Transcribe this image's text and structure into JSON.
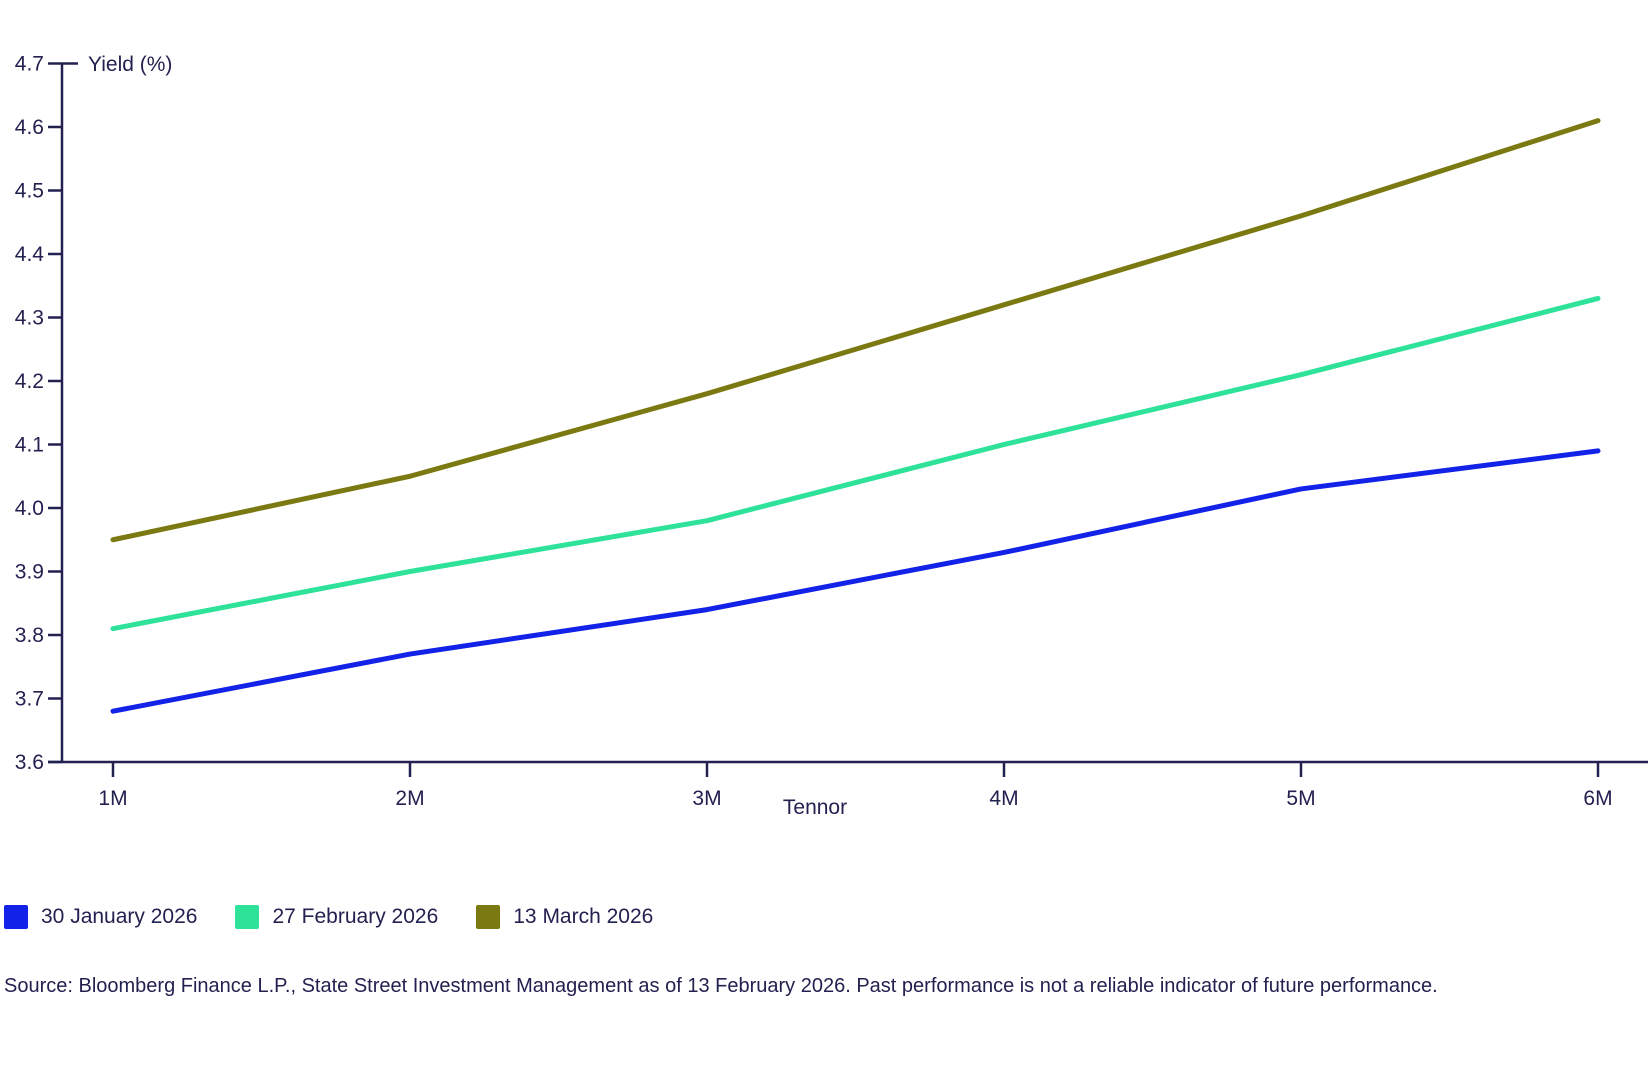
{
  "chart_data": {
    "type": "line",
    "title": "",
    "xlabel": "Tennor",
    "ylabel": "Yield (%)",
    "categories": [
      "1M",
      "2M",
      "3M",
      "4M",
      "5M",
      "6M"
    ],
    "ylim": [
      3.6,
      4.7
    ],
    "ytick_step": 0.1,
    "grid": false,
    "legend_position": "bottom-left",
    "series": [
      {
        "name": "30 January 2026",
        "color": "#1322e8",
        "values": [
          3.68,
          3.77,
          3.84,
          3.93,
          4.03,
          4.09
        ]
      },
      {
        "name": "27 February 2026",
        "color": "#2ee29a",
        "values": [
          3.81,
          3.9,
          3.98,
          4.1,
          4.21,
          4.33
        ]
      },
      {
        "name": "13 March 2026",
        "color": "#7b7a12",
        "values": [
          3.95,
          4.05,
          4.18,
          4.32,
          4.46,
          4.61
        ]
      }
    ]
  },
  "source_note": "Source: Bloomberg Finance L.P., State Street Investment Management as of 13 February 2026. Past performance is not a reliable indicator of future performance.",
  "colors": {
    "axis": "#232150",
    "text": "#232150",
    "background": "#ffffff"
  }
}
